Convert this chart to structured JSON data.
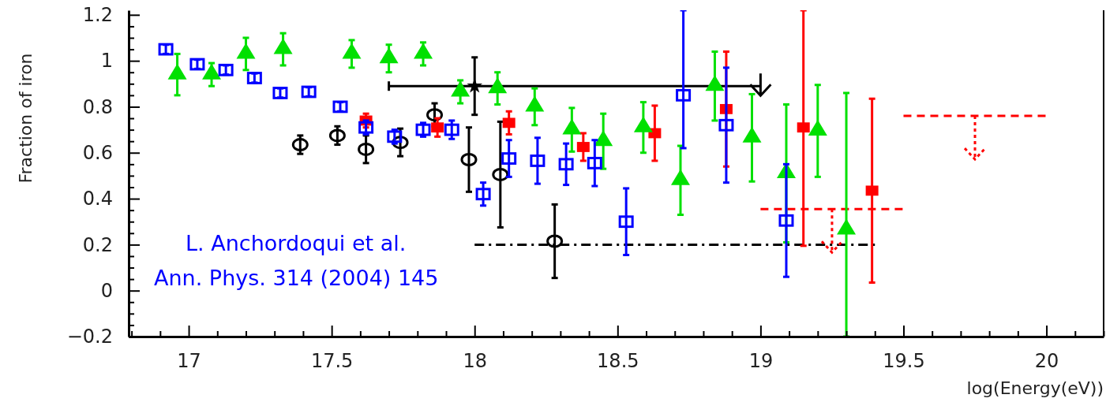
{
  "chart_data": {
    "type": "scatter",
    "xlabel": "log(Energy(eV))",
    "ylabel": "Fraction of iron",
    "annotations": [
      "L. Anchordoqui et al.",
      "Ann. Phys. 314 (2004) 145"
    ],
    "xlim": [
      16.79,
      20.2
    ],
    "ylim": [
      -0.2,
      1.22
    ],
    "xticks": [
      {
        "value": 16.8,
        "label": null
      },
      {
        "value": 16.9,
        "label": null
      },
      17,
      {
        "value": 17.1,
        "label": null
      },
      {
        "value": 17.2,
        "label": null
      },
      {
        "value": 17.3,
        "label": null
      },
      {
        "value": 17.4,
        "label": null
      },
      17.5,
      {
        "value": 17.6,
        "label": null
      },
      {
        "value": 17.7,
        "label": null
      },
      {
        "value": 17.8,
        "label": null
      },
      {
        "value": 17.9,
        "label": null
      },
      18,
      {
        "value": 18.1,
        "label": null
      },
      {
        "value": 18.2,
        "label": null
      },
      {
        "value": 18.3,
        "label": null
      },
      {
        "value": 18.4,
        "label": null
      },
      18.5,
      {
        "value": 18.6,
        "label": null
      },
      {
        "value": 18.7,
        "label": null
      },
      {
        "value": 18.8,
        "label": null
      },
      {
        "value": 18.9,
        "label": null
      },
      19,
      {
        "value": 19.1,
        "label": null
      },
      {
        "value": 19.2,
        "label": null
      },
      {
        "value": 19.3,
        "label": null
      },
      {
        "value": 19.4,
        "label": null
      },
      19.5,
      {
        "value": 19.6,
        "label": null
      },
      {
        "value": 19.7,
        "label": null
      },
      {
        "value": 19.8,
        "label": null
      },
      {
        "value": 19.9,
        "label": null
      },
      20,
      {
        "value": 20.1,
        "label": null
      },
      {
        "value": 20.2,
        "label": null
      }
    ],
    "yticks": [
      {
        "value": -0.2,
        "label": "−0.2"
      },
      {
        "value": -0.15,
        "label": null
      },
      {
        "value": -0.1,
        "label": null
      },
      {
        "value": -0.05,
        "label": null
      },
      0,
      {
        "value": 0.05,
        "label": null
      },
      {
        "value": 0.1,
        "label": null
      },
      {
        "value": 0.15,
        "label": null
      },
      0.2,
      {
        "value": 0.25,
        "label": null
      },
      {
        "value": 0.3,
        "label": null
      },
      {
        "value": 0.35,
        "label": null
      },
      0.4,
      {
        "value": 0.45,
        "label": null
      },
      {
        "value": 0.5,
        "label": null
      },
      {
        "value": 0.55,
        "label": null
      },
      0.6,
      {
        "value": 0.65,
        "label": null
      },
      {
        "value": 0.7,
        "label": null
      },
      {
        "value": 0.75,
        "label": null
      },
      0.8,
      {
        "value": 0.85,
        "label": null
      },
      {
        "value": 0.9,
        "label": null
      },
      {
        "value": 0.95,
        "label": null
      },
      1,
      {
        "value": 1.05,
        "label": null
      },
      {
        "value": 1.1,
        "label": null
      },
      {
        "value": 1.15,
        "label": null
      },
      1.2
    ],
    "grid": false,
    "series": [
      {
        "marker": "square-open",
        "color": "#0000ff",
        "x": [
          16.92,
          17.03,
          17.13,
          17.23,
          17.32,
          17.42,
          17.53,
          17.62,
          17.72,
          17.82,
          17.92,
          18.03,
          18.12,
          18.22,
          18.32,
          18.42,
          18.53,
          18.73,
          18.88,
          19.09
        ],
        "values": [
          1.05,
          0.985,
          0.96,
          0.925,
          0.86,
          0.865,
          0.8,
          0.71,
          0.67,
          0.7,
          0.7,
          0.42,
          0.575,
          0.565,
          0.55,
          0.555,
          0.3,
          0.85,
          0.72,
          0.305
        ],
        "errors": [
          0.02,
          0.02,
          0.02,
          0.02,
          0.02,
          0.02,
          0.02,
          0.03,
          0.03,
          0.03,
          0.04,
          0.05,
          0.08,
          0.1,
          0.09,
          0.1,
          0.145,
          [
            0.62,
            1.22
          ],
          0.25,
          0.245
        ]
      },
      {
        "marker": "triangle",
        "color": "#00e000",
        "x": [
          16.96,
          17.08,
          17.2,
          17.33,
          17.57,
          17.7,
          17.82,
          17.95,
          18.08,
          18.21,
          18.34,
          18.45,
          18.59,
          18.72,
          18.84,
          18.97,
          19.09,
          19.2,
          19.3
        ],
        "values": [
          0.94,
          0.94,
          1.03,
          1.05,
          1.03,
          1.01,
          1.03,
          0.865,
          0.88,
          0.8,
          0.7,
          0.65,
          0.71,
          0.48,
          0.89,
          0.665,
          0.51,
          0.695,
          0.265
        ],
        "errors": [
          0.09,
          0.05,
          0.07,
          0.07,
          0.06,
          0.06,
          0.05,
          0.05,
          0.07,
          0.08,
          0.095,
          0.12,
          0.11,
          0.15,
          0.15,
          0.19,
          0.3,
          0.2,
          [
            -0.2,
            0.86
          ]
        ]
      },
      {
        "marker": "square",
        "color": "#ff0000",
        "x": [
          17.62,
          17.87,
          18.12,
          18.38,
          18.63,
          18.88,
          19.15,
          19.39
        ],
        "values": [
          0.74,
          0.71,
          0.73,
          0.625,
          0.685,
          0.79,
          0.71,
          0.435
        ],
        "errors": [
          0.03,
          0.04,
          0.05,
          0.06,
          0.12,
          0.25,
          [
            0.195,
            1.22
          ],
          0.4
        ]
      },
      {
        "marker": "circle-open",
        "color": "#000000",
        "x": [
          17.39,
          17.52,
          17.62,
          17.74,
          17.86,
          17.98,
          18.09,
          18.28
        ],
        "values": [
          0.635,
          0.675,
          0.615,
          0.645,
          0.765,
          0.57,
          0.505,
          0.215
        ],
        "errors": [
          0.04,
          0.04,
          0.06,
          0.06,
          0.05,
          0.14,
          0.23,
          0.16
        ]
      },
      {
        "marker": "star",
        "color": "#000000",
        "x": [
          18.0
        ],
        "values": [
          0.89
        ],
        "errors": [
          0.125
        ],
        "xerrors": [
          [
            17.7,
            19.0
          ]
        ]
      },
      {
        "type": "line",
        "line_style": "dashed",
        "color": "#ff0000",
        "x": [
          19.0,
          19.5
        ],
        "values": [
          0.355,
          0.355
        ]
      },
      {
        "type": "line",
        "line_style": "dashed",
        "color": "#ff0000",
        "x": [
          19.5,
          20.0
        ],
        "values": [
          0.76,
          0.76
        ]
      },
      {
        "type": "line",
        "line_style": "dashdot",
        "color": "#000000",
        "x": [
          18.0,
          19.4
        ],
        "values": [
          0.2,
          0.2
        ]
      }
    ]
  }
}
